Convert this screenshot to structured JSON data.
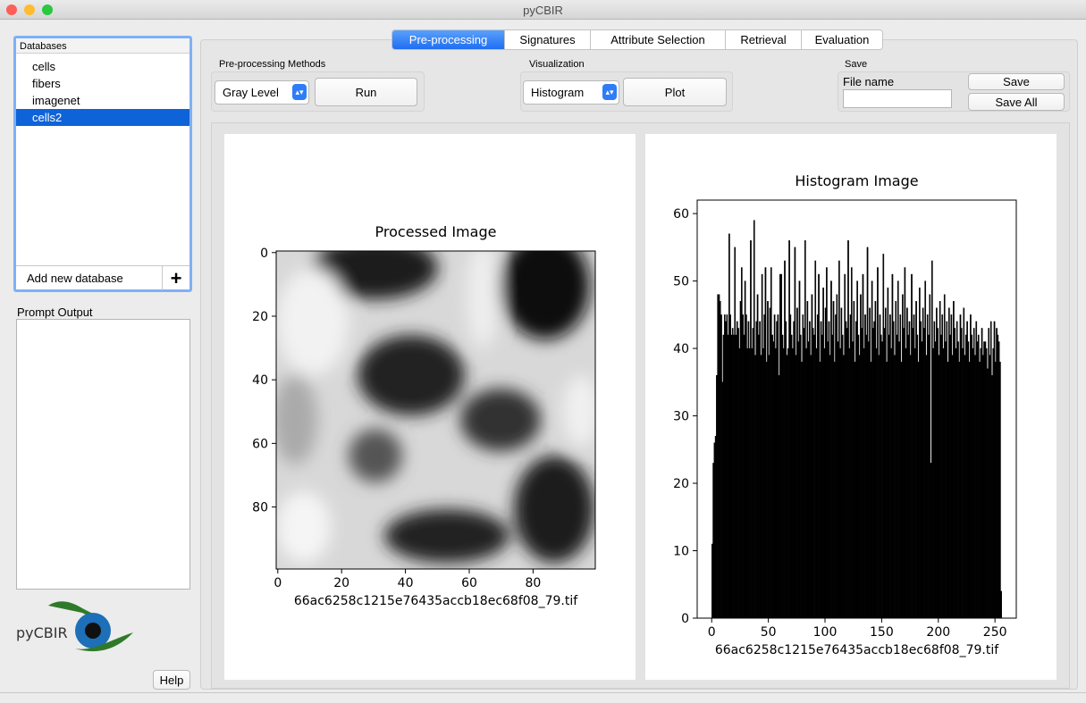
{
  "window": {
    "title": "pyCBIR"
  },
  "sidebar": {
    "databases_label": "Databases",
    "databases": [
      "cells",
      "fibers",
      "imagenet",
      "cells2"
    ],
    "add_database": "Add new database",
    "add_button": "+",
    "prompt_label": "Prompt Output",
    "logo": "pyCBIR",
    "help": "Help"
  },
  "tabs": [
    "Pre-processing",
    "Signatures",
    "Attribute Selection",
    "Retrieval",
    "Evaluation"
  ],
  "toolbar": {
    "preprocessing": {
      "label": "Pre-processing Methods",
      "method": "Gray Level",
      "button": "Run"
    },
    "visualization": {
      "label": "Visualization",
      "mode": "Histogram",
      "button": "Plot"
    },
    "save": {
      "label": "Save",
      "file_name_label": "File name",
      "save_button": "Save",
      "save_all_button": "Save All"
    }
  },
  "chart_data": [
    {
      "type": "image",
      "title": "Processed Image",
      "xlabel": "66ac6258c1215e76435accb18ec68f08_79.tif",
      "xlim": [
        -0.5,
        99.5
      ],
      "ylim": [
        99.5,
        -0.5
      ],
      "xticks": [
        0,
        20,
        40,
        60,
        80
      ],
      "yticks": [
        0,
        20,
        40,
        60,
        80
      ]
    },
    {
      "type": "histogram",
      "title": "Histogram Image",
      "xlabel": "66ac6258c1215e76435accb18ec68f08_79.tif",
      "color": "#000000",
      "xlim": [
        -12.8,
        268.8
      ],
      "ylim": [
        0,
        62
      ],
      "xticks": [
        0,
        50,
        100,
        150,
        200,
        250
      ],
      "yticks": [
        0,
        10,
        20,
        30,
        40,
        50,
        60
      ],
      "bins": [
        0,
        1,
        2,
        3,
        4,
        5,
        6,
        7,
        8,
        9,
        10,
        11,
        12,
        13,
        14,
        15,
        16,
        17,
        18,
        19,
        20,
        21,
        22,
        23,
        24,
        25,
        26,
        27,
        28,
        29,
        30,
        31,
        32,
        33,
        34,
        35,
        36,
        37,
        38,
        39,
        40,
        41,
        42,
        43,
        44,
        45,
        46,
        47,
        48,
        49,
        50,
        51,
        52,
        53,
        54,
        55,
        56,
        57,
        58,
        59,
        60,
        61,
        62,
        63,
        64,
        65,
        66,
        67,
        68,
        69,
        70,
        71,
        72,
        73,
        74,
        75,
        76,
        77,
        78,
        79,
        80,
        81,
        82,
        83,
        84,
        85,
        86,
        87,
        88,
        89,
        90,
        91,
        92,
        93,
        94,
        95,
        96,
        97,
        98,
        99,
        100,
        101,
        102,
        103,
        104,
        105,
        106,
        107,
        108,
        109,
        110,
        111,
        112,
        113,
        114,
        115,
        116,
        117,
        118,
        119,
        120,
        121,
        122,
        123,
        124,
        125,
        126,
        127,
        128,
        129,
        130,
        131,
        132,
        133,
        134,
        135,
        136,
        137,
        138,
        139,
        140,
        141,
        142,
        143,
        144,
        145,
        146,
        147,
        148,
        149,
        150,
        151,
        152,
        153,
        154,
        155,
        156,
        157,
        158,
        159,
        160,
        161,
        162,
        163,
        164,
        165,
        166,
        167,
        168,
        169,
        170,
        171,
        172,
        173,
        174,
        175,
        176,
        177,
        178,
        179,
        180,
        181,
        182,
        183,
        184,
        185,
        186,
        187,
        188,
        189,
        190,
        191,
        192,
        193,
        194,
        195,
        196,
        197,
        198,
        199,
        200,
        201,
        202,
        203,
        204,
        205,
        206,
        207,
        208,
        209,
        210,
        211,
        212,
        213,
        214,
        215,
        216,
        217,
        218,
        219,
        220,
        221,
        222,
        223,
        224,
        225,
        226,
        227,
        228,
        229,
        230,
        231,
        232,
        233,
        234,
        235,
        236,
        237,
        238,
        239,
        240,
        241,
        242,
        243,
        244,
        245,
        246,
        247,
        248,
        249,
        250,
        251,
        252,
        253,
        254,
        255,
        256
      ],
      "values": [
        11,
        23,
        26,
        27,
        36,
        48,
        48,
        47,
        45,
        35,
        42,
        45,
        44,
        45,
        42,
        57,
        45,
        42,
        43,
        42,
        55,
        42,
        44,
        43,
        40,
        47,
        52,
        45,
        42,
        50,
        45,
        40,
        44,
        40,
        56,
        40,
        43,
        59,
        39,
        44,
        48,
        42,
        44,
        39,
        51,
        40,
        45,
        52,
        38,
        47,
        39,
        46,
        52,
        42,
        41,
        45,
        40,
        44,
        45,
        36,
        51,
        51,
        42,
        40,
        53,
        44,
        39,
        40,
        56,
        45,
        42,
        40,
        44,
        55,
        39,
        46,
        41,
        50,
        42,
        38,
        45,
        43,
        56,
        40,
        47,
        41,
        44,
        39,
        48,
        43,
        42,
        53,
        40,
        45,
        51,
        38,
        44,
        42,
        49,
        40,
        46,
        52,
        41,
        44,
        39,
        50,
        42,
        47,
        38,
        45,
        48,
        41,
        53,
        40,
        46,
        42,
        39,
        51,
        44,
        43,
        56,
        40,
        45,
        52,
        41,
        47,
        38,
        44,
        50,
        42,
        39,
        48,
        43,
        51,
        40,
        45,
        42,
        55,
        41,
        46,
        38,
        50,
        43,
        44,
        47,
        40,
        52,
        39,
        45,
        42,
        41,
        54,
        43,
        46,
        38,
        49,
        42,
        45,
        40,
        51,
        44,
        39,
        47,
        42,
        50,
        41,
        45,
        38,
        48,
        43,
        52,
        40,
        46,
        42,
        44,
        39,
        51,
        43,
        45,
        40,
        47,
        42,
        38,
        49,
        44,
        41,
        46,
        43,
        50,
        39,
        45,
        42,
        48,
        23,
        53,
        40,
        44,
        41,
        46,
        43,
        39,
        47,
        42,
        45,
        40,
        48,
        41,
        44,
        38,
        46,
        42,
        45,
        39,
        47,
        43,
        40,
        44,
        41,
        38,
        45,
        43,
        40,
        46,
        39,
        42,
        44,
        41,
        38,
        45,
        42,
        40,
        43,
        39,
        44,
        41,
        42,
        38,
        40,
        43,
        39,
        41,
        41,
        40,
        37,
        43,
        39,
        44,
        36,
        40,
        44,
        38,
        43,
        42,
        41,
        38,
        4
      ]
    }
  ]
}
